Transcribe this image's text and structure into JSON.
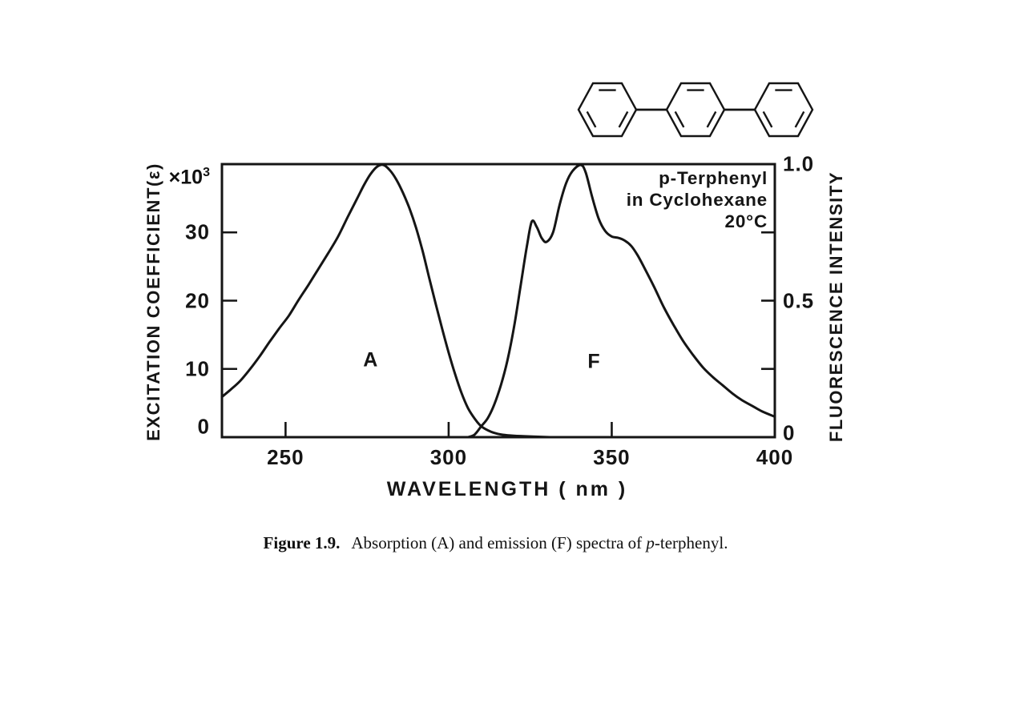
{
  "page": {
    "background": "#ffffff",
    "ink": "#151515"
  },
  "molecule": {
    "name": "p-terphenyl skeletal structure",
    "rings": 3
  },
  "chart_data": {
    "type": "line",
    "title": "",
    "xlabel": "WAVELENGTH ( nm )",
    "x_range": [
      230.5,
      400
    ],
    "x_ticks": [
      250,
      300,
      350,
      400
    ],
    "x_tick_labels": [
      "250",
      "300",
      "350",
      "400"
    ],
    "grid": "off",
    "left_axis": {
      "label": "EXCITATION COEFFICIENT(ε)",
      "scale_base": "×10",
      "scale_exp": "3",
      "range": [
        0,
        40
      ],
      "ticks": [
        10,
        20,
        30
      ],
      "tick_labels": [
        {
          "value": 0,
          "label": "0"
        },
        {
          "value": 10,
          "label": "10"
        },
        {
          "value": 20,
          "label": "20"
        },
        {
          "value": 30,
          "label": "30"
        }
      ]
    },
    "right_axis": {
      "label": "FLUORESCENCE INTENSITY",
      "range": [
        0,
        1
      ],
      "ticks": [
        0.25,
        0.5,
        0.75
      ],
      "tick_labels": [
        {
          "value": 0,
          "label": "0"
        },
        {
          "value": 0.5,
          "label": "0.5"
        },
        {
          "value": 1.0,
          "label": "1.0"
        }
      ]
    },
    "annotation": {
      "line1": "p-Terphenyl",
      "line2": "in Cyclohexane",
      "line3": "20°C"
    },
    "series": [
      {
        "name": "A",
        "label": "A",
        "description": "Absorption spectrum (excitation coefficient, ×10³)",
        "axis": "left",
        "label_pos": {
          "x": 276,
          "y": 11.3
        },
        "points": [
          [
            230.5,
            5.9
          ],
          [
            233,
            6.9
          ],
          [
            236,
            8.2
          ],
          [
            239,
            9.9
          ],
          [
            242,
            11.8
          ],
          [
            245,
            13.9
          ],
          [
            248,
            15.9
          ],
          [
            251,
            17.8
          ],
          [
            254,
            20.1
          ],
          [
            257,
            22.3
          ],
          [
            260,
            24.6
          ],
          [
            263,
            26.9
          ],
          [
            266,
            29.3
          ],
          [
            269,
            32.2
          ],
          [
            272,
            35.0
          ],
          [
            274,
            36.9
          ],
          [
            276,
            38.5
          ],
          [
            278,
            39.6
          ],
          [
            280,
            39.9
          ],
          [
            282,
            39.1
          ],
          [
            284,
            37.7
          ],
          [
            286,
            35.8
          ],
          [
            288,
            33.5
          ],
          [
            290,
            30.7
          ],
          [
            292,
            27.3
          ],
          [
            294,
            23.4
          ],
          [
            296,
            19.6
          ],
          [
            298,
            15.9
          ],
          [
            300,
            12.4
          ],
          [
            302,
            9.2
          ],
          [
            304,
            6.4
          ],
          [
            306,
            4.2
          ],
          [
            308,
            2.7
          ],
          [
            310,
            1.6
          ],
          [
            313,
            0.8
          ],
          [
            316,
            0.4
          ],
          [
            320,
            0.2
          ],
          [
            325,
            0.1
          ],
          [
            331,
            0.0
          ]
        ]
      },
      {
        "name": "F",
        "label": "F",
        "description": "Emission (fluorescence) spectrum, normalized",
        "axis": "right",
        "label_pos": {
          "x": 344.5,
          "y": 0.275
        },
        "points": [
          [
            306,
            0.0
          ],
          [
            308,
            0.01
          ],
          [
            310,
            0.04
          ],
          [
            312,
            0.07
          ],
          [
            314,
            0.12
          ],
          [
            316,
            0.19
          ],
          [
            318,
            0.28
          ],
          [
            320,
            0.4
          ],
          [
            322,
            0.55
          ],
          [
            324,
            0.7
          ],
          [
            325.5,
            0.79
          ],
          [
            327,
            0.77
          ],
          [
            328.5,
            0.73
          ],
          [
            330,
            0.715
          ],
          [
            332,
            0.75
          ],
          [
            334,
            0.85
          ],
          [
            336,
            0.93
          ],
          [
            338,
            0.975
          ],
          [
            340.5,
            1.0
          ],
          [
            342,
            0.97
          ],
          [
            344,
            0.88
          ],
          [
            346,
            0.8
          ],
          [
            348,
            0.755
          ],
          [
            350,
            0.735
          ],
          [
            352,
            0.73
          ],
          [
            354,
            0.72
          ],
          [
            356,
            0.7
          ],
          [
            358,
            0.665
          ],
          [
            360,
            0.62
          ],
          [
            363,
            0.55
          ],
          [
            366,
            0.475
          ],
          [
            369,
            0.41
          ],
          [
            372,
            0.35
          ],
          [
            375,
            0.3
          ],
          [
            378,
            0.255
          ],
          [
            381,
            0.22
          ],
          [
            384,
            0.19
          ],
          [
            387,
            0.16
          ],
          [
            390,
            0.135
          ],
          [
            393,
            0.115
          ],
          [
            396,
            0.095
          ],
          [
            400,
            0.075
          ]
        ]
      }
    ]
  },
  "caption": {
    "label": "Figure 1.9.",
    "text_before": "Absorption (A) and emission (F) spectra of ",
    "italic": "p",
    "text_after": "-terphenyl."
  }
}
